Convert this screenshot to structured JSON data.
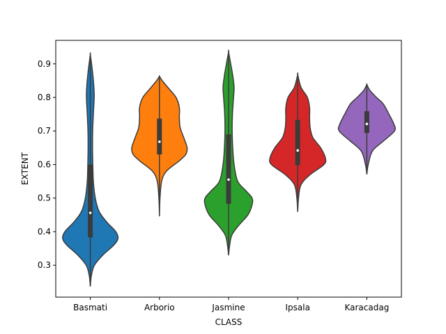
{
  "chart_data": {
    "type": "violin",
    "xlabel": "CLASS",
    "ylabel": "EXTENT",
    "ylim": [
      0.205,
      0.97
    ],
    "yticks": [
      "0.3",
      "0.4",
      "0.5",
      "0.6",
      "0.7",
      "0.8",
      "0.9"
    ],
    "categories": [
      "Basmati",
      "Arborio",
      "Jasmine",
      "Ipsala",
      "Karacadag"
    ],
    "series": [
      {
        "category": "Basmati",
        "color": "#1f77b4",
        "min": 0.237,
        "max": 0.928,
        "q1": 0.383,
        "median": 0.456,
        "q3": 0.6,
        "density": [
          [
            0.237,
            0.0
          ],
          [
            0.27,
            0.04
          ],
          [
            0.3,
            0.15
          ],
          [
            0.33,
            0.45
          ],
          [
            0.36,
            0.85
          ],
          [
            0.38,
            1.0
          ],
          [
            0.4,
            0.92
          ],
          [
            0.43,
            0.58
          ],
          [
            0.46,
            0.32
          ],
          [
            0.5,
            0.18
          ],
          [
            0.55,
            0.11
          ],
          [
            0.6,
            0.09
          ],
          [
            0.65,
            0.08
          ],
          [
            0.7,
            0.085
          ],
          [
            0.75,
            0.11
          ],
          [
            0.8,
            0.14
          ],
          [
            0.83,
            0.13
          ],
          [
            0.86,
            0.1
          ],
          [
            0.89,
            0.06
          ],
          [
            0.928,
            0.0
          ]
        ]
      },
      {
        "category": "Arborio",
        "color": "#ff7f0e",
        "min": 0.446,
        "max": 0.863,
        "q1": 0.63,
        "median": 0.668,
        "q3": 0.737,
        "density": [
          [
            0.446,
            0.0
          ],
          [
            0.5,
            0.02
          ],
          [
            0.55,
            0.08
          ],
          [
            0.58,
            0.25
          ],
          [
            0.61,
            0.7
          ],
          [
            0.63,
            0.95
          ],
          [
            0.65,
            1.0
          ],
          [
            0.68,
            0.88
          ],
          [
            0.71,
            0.75
          ],
          [
            0.74,
            0.72
          ],
          [
            0.77,
            0.72
          ],
          [
            0.8,
            0.6
          ],
          [
            0.83,
            0.3
          ],
          [
            0.85,
            0.1
          ],
          [
            0.863,
            0.0
          ]
        ]
      },
      {
        "category": "Jasmine",
        "color": "#2ca02c",
        "min": 0.33,
        "max": 0.935,
        "q1": 0.483,
        "median": 0.555,
        "q3": 0.69,
        "density": [
          [
            0.33,
            0.0
          ],
          [
            0.36,
            0.04
          ],
          [
            0.39,
            0.12
          ],
          [
            0.42,
            0.38
          ],
          [
            0.45,
            0.7
          ],
          [
            0.48,
            0.85
          ],
          [
            0.5,
            0.85
          ],
          [
            0.52,
            0.65
          ],
          [
            0.55,
            0.33
          ],
          [
            0.6,
            0.2
          ],
          [
            0.65,
            0.15
          ],
          [
            0.7,
            0.13
          ],
          [
            0.75,
            0.14
          ],
          [
            0.8,
            0.18
          ],
          [
            0.83,
            0.2
          ],
          [
            0.86,
            0.16
          ],
          [
            0.89,
            0.1
          ],
          [
            0.935,
            0.0
          ]
        ]
      },
      {
        "category": "Ipsala",
        "color": "#d62728",
        "min": 0.459,
        "max": 0.868,
        "q1": 0.598,
        "median": 0.642,
        "q3": 0.733,
        "density": [
          [
            0.459,
            0.0
          ],
          [
            0.5,
            0.03
          ],
          [
            0.54,
            0.12
          ],
          [
            0.57,
            0.45
          ],
          [
            0.6,
            0.95
          ],
          [
            0.62,
            1.0
          ],
          [
            0.65,
            0.83
          ],
          [
            0.68,
            0.55
          ],
          [
            0.71,
            0.45
          ],
          [
            0.74,
            0.43
          ],
          [
            0.77,
            0.43
          ],
          [
            0.8,
            0.35
          ],
          [
            0.83,
            0.12
          ],
          [
            0.868,
            0.0
          ]
        ]
      },
      {
        "category": "Karacadag",
        "color": "#9467bd",
        "min": 0.571,
        "max": 0.838,
        "q1": 0.694,
        "median": 0.721,
        "q3": 0.759,
        "density": [
          [
            0.571,
            0.0
          ],
          [
            0.6,
            0.05
          ],
          [
            0.64,
            0.2
          ],
          [
            0.67,
            0.6
          ],
          [
            0.7,
            1.0
          ],
          [
            0.72,
            0.98
          ],
          [
            0.75,
            0.8
          ],
          [
            0.78,
            0.6
          ],
          [
            0.8,
            0.35
          ],
          [
            0.82,
            0.12
          ],
          [
            0.838,
            0.0
          ]
        ]
      }
    ]
  }
}
